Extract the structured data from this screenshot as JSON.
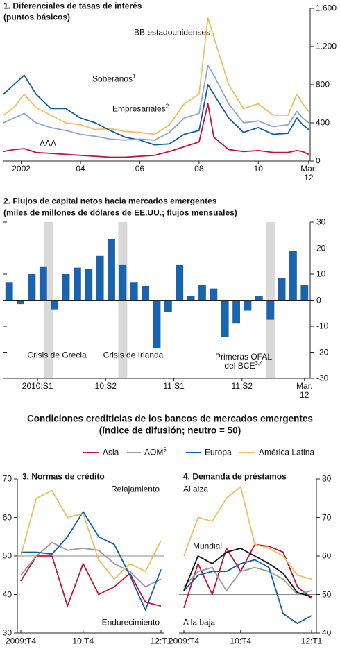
{
  "section": {
    "title": "Condiciones crediticias de los bancos de mercados emergentes",
    "subtitle": "(índice de difusión; neutro = 50)"
  },
  "chart_data": [
    {
      "type": "line",
      "title": "1. Diferenciales de tasas de interés",
      "subtitle": "(puntos básicos)",
      "x": [
        2001.9,
        2002.25,
        2002.6,
        2003,
        2003.5,
        2004,
        2004.5,
        2005,
        2005.5,
        2006,
        2006.5,
        2007,
        2007.5,
        2008,
        2008.5,
        2008.8,
        2009,
        2009.5,
        2010,
        2010.5,
        2011,
        2011.5,
        2011.8,
        2012,
        2012.2
      ],
      "xlim": [
        2001.9,
        2012.25
      ],
      "xticks": [
        {
          "value": 2002.5,
          "label": "2002"
        },
        {
          "value": 2004.5,
          "label": "04"
        },
        {
          "value": 2006.5,
          "label": "06"
        },
        {
          "value": 2008.5,
          "label": "08"
        },
        {
          "value": 2010.5,
          "label": "10"
        },
        {
          "value": 2012.2,
          "label": "Mar. 12"
        }
      ],
      "ylim": [
        0,
        1600
      ],
      "yticks": [
        0,
        400,
        800,
        {
          "value": 1200,
          "label": "1.200"
        },
        {
          "value": 1600,
          "label": "1.600"
        }
      ],
      "series": [
        {
          "name": "BB estadounidenses",
          "color": "#f3bd5e",
          "values": [
            480,
            560,
            700,
            560,
            480,
            400,
            380,
            330,
            340,
            310,
            300,
            280,
            380,
            600,
            700,
            1500,
            1300,
            800,
            550,
            600,
            480,
            480,
            700,
            600,
            520
          ]
        },
        {
          "name": "Soberanos",
          "superscript": "1",
          "color": "#0f5ca6",
          "values": [
            700,
            800,
            900,
            700,
            550,
            550,
            450,
            400,
            320,
            250,
            220,
            170,
            180,
            280,
            320,
            800,
            700,
            450,
            300,
            350,
            280,
            290,
            450,
            380,
            330
          ]
        },
        {
          "name": "Empresariales",
          "superscript": "2",
          "color": "#8ea6d2",
          "values": [
            400,
            450,
            500,
            400,
            350,
            320,
            280,
            260,
            230,
            220,
            230,
            220,
            300,
            450,
            500,
            1000,
            900,
            600,
            400,
            420,
            360,
            380,
            520,
            450,
            400
          ]
        },
        {
          "name": "AAA",
          "color": "#c3113d",
          "values": [
            100,
            120,
            130,
            90,
            80,
            70,
            60,
            50,
            40,
            40,
            50,
            60,
            100,
            150,
            200,
            600,
            250,
            120,
            100,
            110,
            90,
            90,
            110,
            100,
            70
          ]
        }
      ]
    },
    {
      "type": "bar",
      "title": "2. Flujos de capital netos hacia mercados emergentes",
      "subtitle": "(miles de millones de dólares de EE.UU.; flujos mensuales)",
      "values": [
        7,
        -1.5,
        10,
        13,
        -3.5,
        10,
        12.5,
        12,
        17,
        23.5,
        13.5,
        7,
        5.5,
        -18.5,
        -4.5,
        13.5,
        1.5,
        6,
        4.5,
        -14,
        -9,
        -4,
        1.5,
        -7.5,
        8.5,
        19,
        6
      ],
      "color": "#1a63ae",
      "xticks": [
        {
          "value": 2.5,
          "label": "2010:S1"
        },
        {
          "value": 8.5,
          "label": "10:S2"
        },
        {
          "value": 14.5,
          "label": "11:S1"
        },
        {
          "value": 20.5,
          "label": "11:S2"
        },
        {
          "value": 26,
          "label": "Mar. 12"
        }
      ],
      "ylim": [
        -30,
        30
      ],
      "yticks": [
        -30,
        -20,
        -10,
        0,
        10,
        20,
        30
      ],
      "shaded": [
        3.5,
        10,
        23
      ],
      "annotations": [
        {
          "text": "Crisis de Grecia"
        },
        {
          "text": "Crisis de Irlanda"
        },
        {
          "text": "Primeras OFAL del BCE",
          "superscript": "3,4"
        }
      ]
    },
    {
      "type": "line",
      "title": "3. Normas de crédito",
      "categories": [
        "2009:T4",
        null,
        null,
        null,
        "10:T4",
        null,
        null,
        null,
        null,
        "12:T1"
      ],
      "ylim": [
        30,
        70
      ],
      "yticks": [
        30,
        40,
        50,
        60,
        70
      ],
      "refline": 50,
      "annotations": [
        {
          "text": "Relajamiento"
        },
        {
          "text": "Endurecimiento"
        }
      ],
      "series": [
        {
          "name": "Asia",
          "color": "#c3113d",
          "values": [
            43.5,
            50,
            50,
            37,
            48,
            40,
            42,
            45.5,
            38,
            37
          ]
        },
        {
          "name": "AOM",
          "superscript": "5",
          "color": "#9a9a9a",
          "values": [
            45,
            50,
            53.5,
            51.5,
            52,
            51.5,
            48,
            46,
            42,
            44
          ]
        },
        {
          "name": "Europa",
          "color": "#0f5ca6",
          "values": [
            51,
            51,
            50.5,
            55,
            61.5,
            55,
            53,
            45,
            36,
            46.5
          ]
        },
        {
          "name": "América Latina",
          "color": "#f3bd5e",
          "values": [
            50,
            65,
            67,
            60,
            61,
            49,
            44,
            48,
            46,
            54
          ]
        }
      ]
    },
    {
      "type": "line",
      "title": "4. Demanda de préstamos",
      "categories": [
        "2009:T4",
        null,
        null,
        null,
        "10:T4",
        null,
        null,
        null,
        null,
        "12:T1"
      ],
      "ylim": [
        40,
        80
      ],
      "yticks": [
        40,
        50,
        60,
        70,
        80
      ],
      "refline": 50,
      "annotations": [
        {
          "text": "Al alza"
        },
        {
          "text": "A la baja"
        }
      ],
      "series": [
        {
          "name": "Asia",
          "color": "#c3113d",
          "values": [
            46.5,
            58,
            50,
            62,
            56,
            63,
            62.5,
            61,
            52,
            49
          ]
        },
        {
          "name": "AOM",
          "color": "#9a9a9a",
          "values": [
            52,
            56,
            57,
            51,
            56,
            57,
            56,
            54,
            50,
            51
          ]
        },
        {
          "name": "Europa",
          "color": "#0f5ca6",
          "values": [
            51,
            55,
            56,
            56,
            58,
            59,
            57,
            45,
            42.5,
            44.5
          ]
        },
        {
          "name": "América Latina",
          "color": "#f3bd5e",
          "values": [
            60,
            70,
            69,
            75,
            78,
            63,
            62,
            60,
            55,
            54
          ]
        },
        {
          "name": "Mundial",
          "color": "#111111",
          "values": [
            51,
            60,
            58,
            61,
            62,
            60,
            58,
            55.5,
            50.5,
            49.5
          ]
        }
      ]
    }
  ]
}
